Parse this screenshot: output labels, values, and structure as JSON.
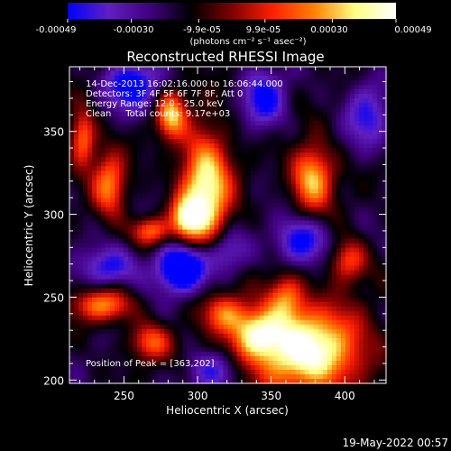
{
  "colorbar": {
    "tick_labels": [
      "-0.00049",
      "-0.00030",
      "-9.9e-05",
      "9.9e-05",
      "0.00030",
      "0.00049"
    ],
    "units": "(photons cm⁻² s⁻¹ asec⁻²)",
    "range": [
      -0.00049,
      0.00049
    ],
    "colormap": [
      "#0000ff",
      "#6020c0",
      "#400080",
      "#000000",
      "#800000",
      "#ff2000",
      "#ff8000",
      "#ffff80",
      "#ffffff"
    ]
  },
  "chart_data": {
    "type": "heatmap",
    "title": "Reconstructed RHESSI Image",
    "xlabel": "Heliocentric X (arcsec)",
    "ylabel": "Heliocentric Y (arcsec)",
    "xlim": [
      213,
      428
    ],
    "ylim": [
      198,
      389
    ],
    "xticks": [
      250,
      300,
      350,
      400
    ],
    "yticks": [
      200,
      250,
      300,
      350
    ],
    "annotations": [
      "14-Dec-2013 16:02:16.000 to 16:06:44.000",
      "Detectors: 3F 4F 5F 6F 7F 8F, Att 0",
      "Energy Range: 12.0 - 25.0 keV",
      "Clean     Total counts: 9.17e+03"
    ],
    "peak_label": "Position of Peak = [363,202]",
    "peak": [
      363,
      202
    ],
    "sources": [
      {
        "x": 305,
        "y": 312,
        "amp": 0.95,
        "sx": 12,
        "sy": 26
      },
      {
        "x": 282,
        "y": 360,
        "amp": 0.7,
        "sx": 7,
        "sy": 10
      },
      {
        "x": 292,
        "y": 298,
        "amp": 0.6,
        "sx": 7,
        "sy": 8
      },
      {
        "x": 268,
        "y": 290,
        "amp": 0.55,
        "sx": 9,
        "sy": 6
      },
      {
        "x": 240,
        "y": 318,
        "amp": 0.6,
        "sx": 8,
        "sy": 14
      },
      {
        "x": 222,
        "y": 346,
        "amp": 0.6,
        "sx": 6,
        "sy": 12
      },
      {
        "x": 378,
        "y": 322,
        "amp": 0.75,
        "sx": 10,
        "sy": 14
      },
      {
        "x": 402,
        "y": 272,
        "amp": 0.5,
        "sx": 9,
        "sy": 9
      },
      {
        "x": 360,
        "y": 250,
        "amp": 0.5,
        "sx": 9,
        "sy": 10
      },
      {
        "x": 375,
        "y": 218,
        "amp": 1.0,
        "sx": 26,
        "sy": 18
      },
      {
        "x": 340,
        "y": 228,
        "amp": 0.7,
        "sx": 12,
        "sy": 10
      },
      {
        "x": 318,
        "y": 240,
        "amp": 0.5,
        "sx": 10,
        "sy": 8
      },
      {
        "x": 235,
        "y": 245,
        "amp": 0.6,
        "sx": 14,
        "sy": 7
      },
      {
        "x": 268,
        "y": 223,
        "amp": 0.5,
        "sx": 10,
        "sy": 8
      }
    ],
    "minima": [
      {
        "x": 290,
        "y": 268,
        "amp": 0.9,
        "sx": 12,
        "sy": 10
      },
      {
        "x": 255,
        "y": 378,
        "amp": 0.6,
        "sx": 12,
        "sy": 10
      },
      {
        "x": 345,
        "y": 370,
        "amp": 0.5,
        "sx": 10,
        "sy": 12
      },
      {
        "x": 370,
        "y": 284,
        "amp": 0.55,
        "sx": 12,
        "sy": 10
      },
      {
        "x": 240,
        "y": 268,
        "amp": 0.45,
        "sx": 14,
        "sy": 8
      },
      {
        "x": 318,
        "y": 278,
        "amp": 0.45,
        "sx": 10,
        "sy": 10
      },
      {
        "x": 415,
        "y": 360,
        "amp": 0.4,
        "sx": 10,
        "sy": 14
      },
      {
        "x": 310,
        "y": 205,
        "amp": 0.35,
        "sx": 12,
        "sy": 8
      }
    ]
  },
  "timestamp": "19-May-2022 00:57"
}
